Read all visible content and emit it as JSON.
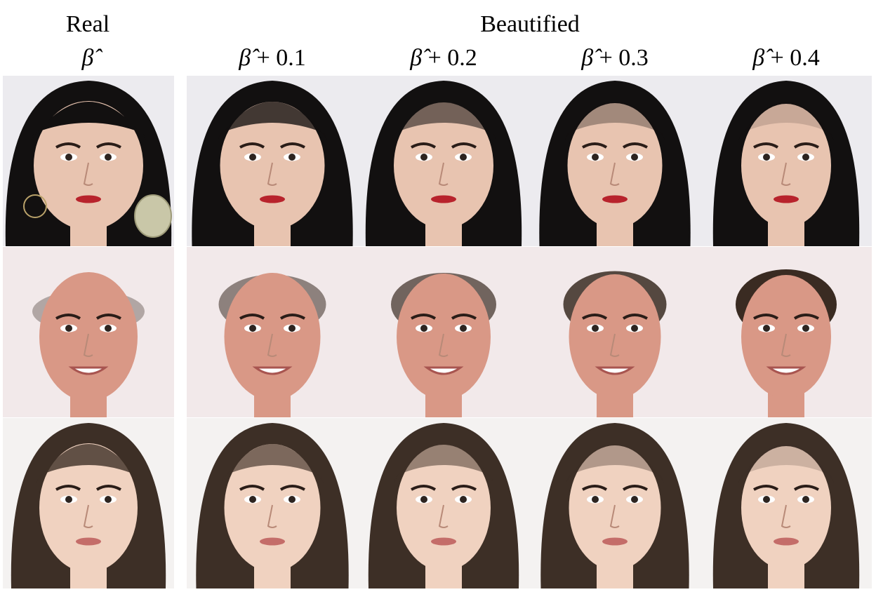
{
  "header": {
    "real_label": "Real",
    "beautified_label": "Beautified",
    "columns": [
      {
        "symbol": "β̂",
        "suffix": ""
      },
      {
        "symbol": "β̂",
        "suffix": " + 0.1"
      },
      {
        "symbol": "β̂",
        "suffix": " + 0.2"
      },
      {
        "symbol": "β̂",
        "suffix": " + 0.3"
      },
      {
        "symbol": "β̂",
        "suffix": " + 0.4"
      }
    ]
  },
  "rows": [
    {
      "subject": "woman-black-bangs",
      "hair": "#121010",
      "skin": "#e8c4b0",
      "lip": "#b8232c",
      "bg": "#ecebef"
    },
    {
      "subject": "bald-man",
      "hair": "#3a2b22",
      "skin": "#d99886",
      "lip": "#a85550",
      "bg": "#f2e9ea"
    },
    {
      "subject": "woman-bob",
      "hair": "#3d2f26",
      "skin": "#f0d2c0",
      "lip": "#c46d69",
      "bg": "#f4f2f1"
    }
  ]
}
